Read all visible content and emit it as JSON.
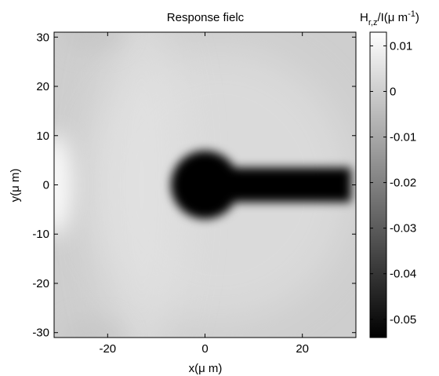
{
  "chart_data": {
    "type": "heatmap",
    "title": "Response fielc",
    "xlabel": "x(μ m)",
    "ylabel": "y(μ m)",
    "colorbar_label": "H",
    "colorbar_label_sub": "r,z",
    "colorbar_label_rest": "/I(μ m",
    "colorbar_label_sup": "-1",
    "colorbar_label_close": ")",
    "xlim": [
      -31,
      31
    ],
    "ylim": [
      -31,
      31
    ],
    "x_ticks": [
      -20,
      0,
      20
    ],
    "x_tick_labels": [
      "-20",
      "0",
      "20"
    ],
    "y_ticks": [
      30,
      20,
      10,
      0,
      -10,
      -20,
      -30
    ],
    "y_tick_labels": [
      "30",
      "20",
      "10",
      "0",
      "-10",
      "-20",
      "-30"
    ],
    "colorscale": "gray",
    "clim": [
      -0.054,
      0.013
    ],
    "colorbar_ticks": [
      0.01,
      0,
      -0.01,
      -0.02,
      -0.03,
      -0.04,
      -0.05
    ],
    "colorbar_tick_labels": [
      "0.01",
      "0",
      "-0.01",
      "-0.02",
      "-0.03",
      "-0.04",
      "-0.05"
    ],
    "background_value": 0.0,
    "features": [
      {
        "shape": "disk",
        "center": [
          0,
          0
        ],
        "radius": 7,
        "value": -0.053
      },
      {
        "shape": "bar",
        "x_range": [
          0,
          30
        ],
        "y_range": [
          -3.5,
          3.5
        ],
        "value": -0.053
      },
      {
        "shape": "bright-lobe",
        "center": [
          -31,
          0
        ],
        "value": 0.012
      },
      {
        "shape": "bright-halo",
        "center": [
          3,
          0
        ],
        "value": 0.006
      }
    ]
  }
}
